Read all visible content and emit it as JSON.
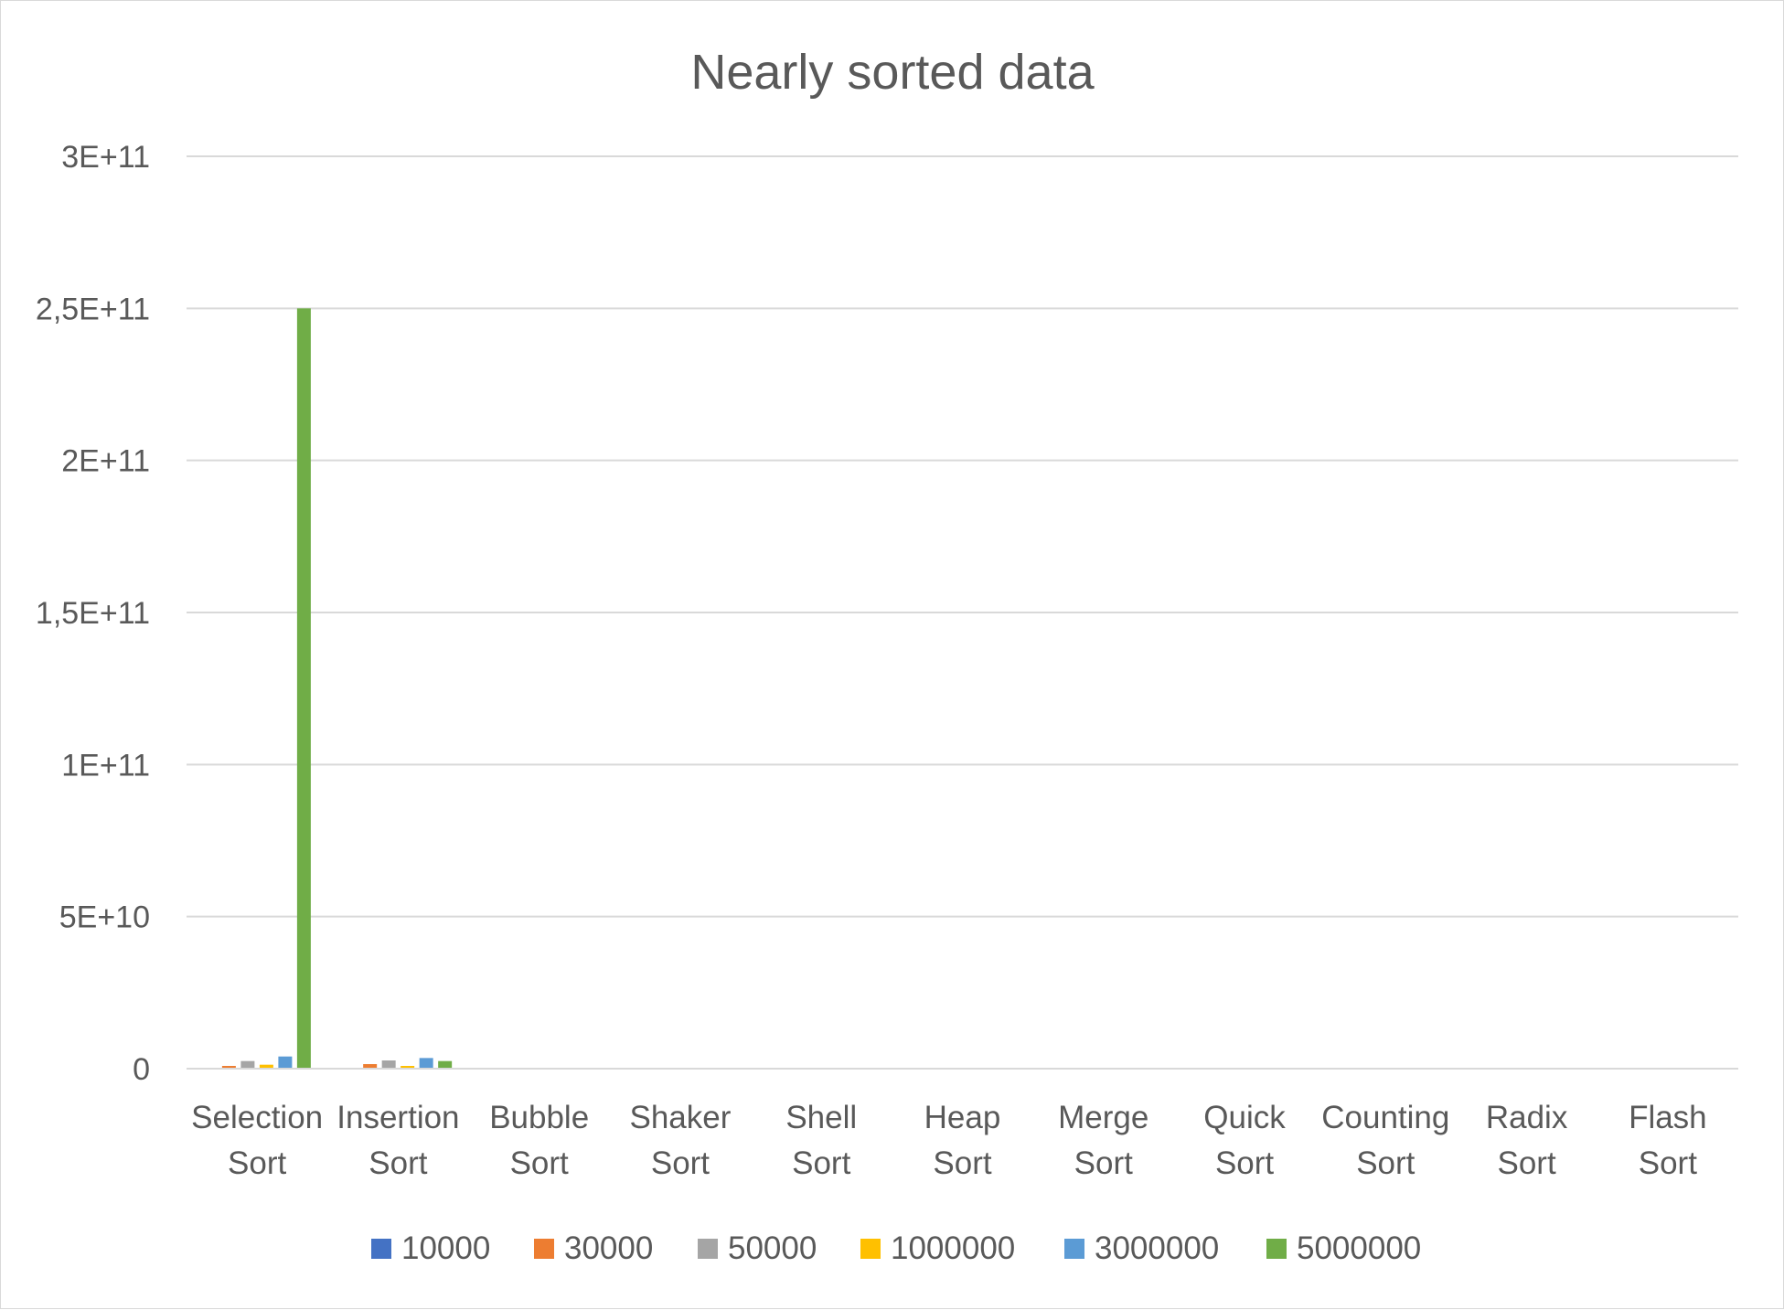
{
  "chart_data": {
    "type": "bar",
    "title": "Nearly sorted data",
    "xlabel": "",
    "ylabel": "",
    "ylim": [
      0,
      300000000000
    ],
    "yticks": [
      {
        "value": 0,
        "label": "0"
      },
      {
        "value": 50000000000,
        "label": "5E+10"
      },
      {
        "value": 100000000000,
        "label": "1E+11"
      },
      {
        "value": 150000000000,
        "label": "1,5E+11"
      },
      {
        "value": 200000000000,
        "label": "2E+11"
      },
      {
        "value": 250000000000,
        "label": "2,5E+11"
      },
      {
        "value": 300000000000,
        "label": "3E+11"
      }
    ],
    "grid": true,
    "legend_position": "bottom",
    "categories": [
      [
        "Selection",
        "Sort"
      ],
      [
        "Insertion",
        "Sort"
      ],
      [
        "Bubble",
        "Sort"
      ],
      [
        "Shaker",
        "Sort"
      ],
      [
        "Shell",
        "Sort"
      ],
      [
        "Heap",
        "Sort"
      ],
      [
        "Merge",
        "Sort"
      ],
      [
        "Quick",
        "Sort"
      ],
      [
        "Counting",
        "Sort"
      ],
      [
        "Radix",
        "Sort"
      ],
      [
        "Flash",
        "Sort"
      ]
    ],
    "series": [
      {
        "name": "10000",
        "color": "#4472C4",
        "values": [
          100000000,
          50000000,
          0,
          0,
          0,
          0,
          0,
          0,
          0,
          0,
          0
        ]
      },
      {
        "name": "30000",
        "color": "#ED7D31",
        "values": [
          900000000,
          1500000000,
          0,
          0,
          0,
          0,
          0,
          0,
          0,
          0,
          0
        ]
      },
      {
        "name": "50000",
        "color": "#A5A5A5",
        "values": [
          2500000000,
          2700000000,
          0,
          0,
          0,
          0,
          0,
          0,
          0,
          0,
          0
        ]
      },
      {
        "name": "1000000",
        "color": "#FFC000",
        "values": [
          1300000000,
          900000000,
          0,
          0,
          0,
          0,
          0,
          0,
          0,
          0,
          0
        ]
      },
      {
        "name": "3000000",
        "color": "#5B9BD5",
        "values": [
          4000000000,
          3500000000,
          0,
          0,
          0,
          0,
          0,
          0,
          0,
          0,
          0
        ]
      },
      {
        "name": "5000000",
        "color": "#70AD47",
        "values": [
          250000000000,
          2500000000,
          0,
          0,
          0,
          0,
          0,
          0,
          0,
          0,
          0
        ]
      }
    ]
  }
}
